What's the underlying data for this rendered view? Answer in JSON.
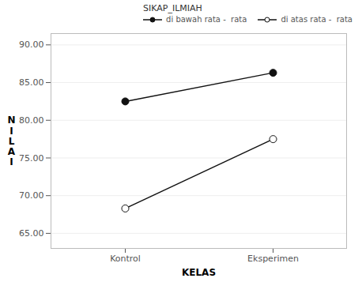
{
  "chart_data": {
    "type": "line",
    "categories": [
      "Kontrol",
      "Eksperimen"
    ],
    "series": [
      {
        "name": "di bawah rata -  rata",
        "color": "#111111",
        "marker": "circle",
        "values": [
          82.5,
          86.3
        ]
      },
      {
        "name": "di atas rata -  rata",
        "color": "#111111",
        "marker": "open_circle",
        "values": [
          68.3,
          77.5
        ]
      }
    ],
    "xlabel": "KELAS",
    "ylabel": "N\nI\nL\nA\nI",
    "legend_title": "SIKAP_ILMIAH",
    "ylim": [
      63.0,
      91.5
    ],
    "yticks": [
      {
        "value": 65.0,
        "label": "65.00"
      },
      {
        "value": 70.0,
        "label": "70.00"
      },
      {
        "value": 75.0,
        "label": "75.00"
      },
      {
        "value": 80.0,
        "label": "80.00"
      },
      {
        "value": 85.0,
        "label": "85.00"
      },
      {
        "value": 90.0,
        "label": "90.00"
      }
    ],
    "grid": true,
    "legend": "upper right"
  }
}
